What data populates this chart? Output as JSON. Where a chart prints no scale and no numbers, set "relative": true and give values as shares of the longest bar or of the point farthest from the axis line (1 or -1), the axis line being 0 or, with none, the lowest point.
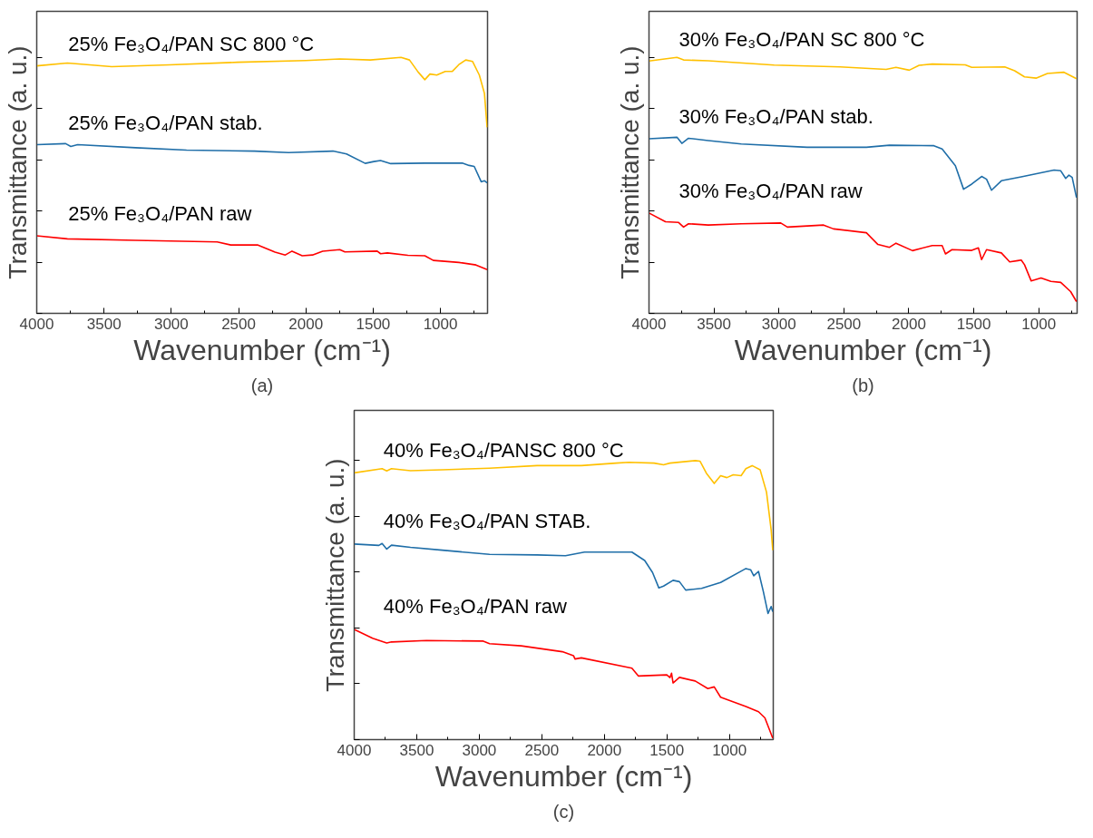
{
  "chart_data": [
    {
      "type": "line",
      "relative": true,
      "xlabel": "Wavenumber (cm⁻¹)",
      "ylabel": "Transmittance (a. u.)",
      "xlim": [
        4000,
        650
      ],
      "tick_labels": "x",
      "xticks": [
        4000,
        {
          "value": 3750,
          "label": null
        },
        3500,
        {
          "value": 3250,
          "label": null
        },
        3000,
        {
          "value": 2750,
          "label": null
        },
        2500,
        {
          "value": 2250,
          "label": null
        },
        2000,
        {
          "value": 1750,
          "label": null
        },
        1500,
        {
          "value": 1250,
          "label": null
        },
        1000,
        {
          "value": 750,
          "label": null
        }
      ],
      "annotations": [
        "(a)"
      ],
      "series": [
        {
          "name": "25% Fe₃O₄/PAN  SC 800 °C",
          "color": "#ffc000",
          "x": [
            4000,
            3772,
            3443,
            3013,
            2507,
            2001,
            1748,
            1521,
            1293,
            1230,
            1166,
            1116,
            1078,
            1027,
            964,
            913,
            863,
            812,
            761,
            711,
            673,
            653
          ],
          "values": [
            0.967,
            0.978,
            0.964,
            0.971,
            0.981,
            0.988,
            0.994,
            0.99,
            1.0,
            0.99,
            0.943,
            0.913,
            0.935,
            0.931,
            0.945,
            0.945,
            0.972,
            0.99,
            0.984,
            0.931,
            0.859,
            0.727
          ]
        },
        {
          "name": "25% Fe₃O₄/PAN stab.",
          "color": "#1f6ea8",
          "x": [
            4000,
            3785,
            3747,
            3696,
            3266,
            2887,
            2381,
            2128,
            1799,
            1698,
            1559,
            1495,
            1445,
            1369,
            1116,
            838,
            787,
            749,
            697,
            672,
            653
          ],
          "values": [
            0.659,
            0.663,
            0.652,
            0.659,
            0.647,
            0.638,
            0.634,
            0.628,
            0.634,
            0.623,
            0.586,
            0.593,
            0.597,
            0.585,
            0.587,
            0.587,
            0.578,
            0.574,
            0.514,
            0.518,
            0.51
          ]
        },
        {
          "name": "25% Fe₃O₄/PAN raw",
          "color": "#ff0000",
          "x": [
            4000,
            3772,
            3266,
            2659,
            2558,
            2356,
            2229,
            2153,
            2103,
            2027,
            1951,
            1875,
            1748,
            1710,
            1470,
            1445,
            1394,
            1242,
            1116,
            1053,
            863,
            736,
            653
          ],
          "values": [
            0.303,
            0.291,
            0.285,
            0.279,
            0.267,
            0.267,
            0.239,
            0.228,
            0.243,
            0.225,
            0.228,
            0.243,
            0.249,
            0.24,
            0.243,
            0.233,
            0.236,
            0.227,
            0.225,
            0.207,
            0.199,
            0.189,
            0.171
          ]
        }
      ]
    },
    {
      "type": "line",
      "relative": true,
      "xlabel": "Wavenumber (cm⁻¹)",
      "ylabel": "Transmittance (a. u.)",
      "xlim": [
        4000,
        705
      ],
      "tick_labels": "x",
      "xticks": [
        4000,
        {
          "value": 3750,
          "label": null
        },
        3500,
        {
          "value": 3250,
          "label": null
        },
        3000,
        {
          "value": 2750,
          "label": null
        },
        2500,
        {
          "value": 2250,
          "label": null
        },
        2000,
        {
          "value": 1750,
          "label": null
        },
        1500,
        {
          "value": 1250,
          "label": null
        },
        1000,
        {
          "value": 750,
          "label": null
        }
      ],
      "annotations": [
        "(b)"
      ],
      "series": [
        {
          "name": "30% Fe₃O₄/PAN SC 800 °C",
          "color": "#ffc000",
          "x": [
            4000,
            3785,
            3734,
            3544,
            3037,
            2530,
            2175,
            2099,
            1997,
            1921,
            1820,
            1566,
            1516,
            1262,
            1186,
            1110,
            1021,
            933,
            806,
            710
          ],
          "values": [
            0.986,
            1.0,
            0.99,
            0.987,
            0.97,
            0.963,
            0.953,
            0.961,
            0.95,
            0.969,
            0.974,
            0.971,
            0.961,
            0.963,
            0.948,
            0.924,
            0.919,
            0.937,
            0.942,
            0.917
          ]
        },
        {
          "name": "30% Fe₃O₄/PAN stab.",
          "color": "#1f6ea8",
          "x": [
            4000,
            3785,
            3747,
            3696,
            3544,
            3290,
            2783,
            2327,
            2149,
            1807,
            1744,
            1642,
            1579,
            1516,
            1440,
            1402,
            1364,
            1288,
            1135,
            882,
            831,
            793,
            768,
            743,
            710
          ],
          "values": [
            0.682,
            0.688,
            0.664,
            0.684,
            0.675,
            0.662,
            0.649,
            0.649,
            0.657,
            0.655,
            0.642,
            0.577,
            0.485,
            0.505,
            0.535,
            0.524,
            0.481,
            0.518,
            0.533,
            0.56,
            0.557,
            0.527,
            0.54,
            0.531,
            0.452
          ]
        },
        {
          "name": "30% Fe₃O₄/PAN raw",
          "color": "#ff0000",
          "x": [
            4000,
            3873,
            3772,
            3734,
            3696,
            3544,
            3290,
            2986,
            2935,
            2656,
            2580,
            2327,
            2238,
            2149,
            2099,
            1972,
            1820,
            1744,
            1718,
            1668,
            1516,
            1465,
            1440,
            1402,
            1288,
            1224,
            1161,
            1135,
            1110,
            1059,
            983,
            907,
            831,
            755,
            710
          ],
          "values": [
            0.392,
            0.358,
            0.355,
            0.337,
            0.35,
            0.345,
            0.35,
            0.353,
            0.337,
            0.345,
            0.33,
            0.315,
            0.269,
            0.258,
            0.274,
            0.245,
            0.265,
            0.265,
            0.232,
            0.249,
            0.246,
            0.256,
            0.21,
            0.249,
            0.236,
            0.201,
            0.206,
            0.208,
            0.19,
            0.127,
            0.138,
            0.125,
            0.121,
            0.085,
            0.046
          ]
        }
      ]
    },
    {
      "type": "line",
      "relative": true,
      "xlabel": "Wavenumber (cm⁻¹)",
      "ylabel": "Transmittance (a. u.)",
      "xlim": [
        4000,
        650
      ],
      "tick_labels": "x",
      "xticks": [
        4000,
        {
          "value": 3750,
          "label": null
        },
        3500,
        {
          "value": 3250,
          "label": null
        },
        3000,
        {
          "value": 2750,
          "label": null
        },
        2500,
        {
          "value": 2250,
          "label": null
        },
        2000,
        {
          "value": 1750,
          "label": null
        },
        1500,
        {
          "value": 1250,
          "label": null
        },
        1000,
        {
          "value": 750,
          "label": null
        }
      ],
      "annotations": [
        "(c)"
      ],
      "series": [
        {
          "name": "40% Fe₃O₄/PANSC 800 °C",
          "color": "#ffc000",
          "x": [
            4000,
            3777,
            3740,
            3702,
            3550,
            3297,
            2918,
            2538,
            2184,
            1906,
            1805,
            1603,
            1527,
            1476,
            1274,
            1236,
            1185,
            1122,
            1071,
            1021,
            970,
            907,
            869,
            819,
            755,
            704,
            667,
            654
          ],
          "values": [
            0.956,
            0.971,
            0.963,
            0.971,
            0.964,
            0.967,
            0.973,
            0.982,
            0.982,
            0.991,
            0.994,
            0.991,
            0.985,
            0.991,
            1.0,
            0.998,
            0.955,
            0.918,
            0.946,
            0.939,
            0.949,
            0.946,
            0.971,
            0.982,
            0.967,
            0.887,
            0.752,
            0.679
          ]
        },
        {
          "name": "40% Fe₃O₄/PAN  STAB.",
          "color": "#1f6ea8",
          "x": [
            4000,
            3803,
            3777,
            3740,
            3702,
            3550,
            3297,
            2918,
            2538,
            2311,
            2159,
            1780,
            1678,
            1615,
            1565,
            1527,
            1451,
            1400,
            1350,
            1223,
            1071,
            869,
            831,
            806,
            768,
            730,
            692,
            667,
            654
          ],
          "values": [
            0.701,
            0.696,
            0.703,
            0.683,
            0.697,
            0.689,
            0.679,
            0.664,
            0.662,
            0.659,
            0.672,
            0.672,
            0.642,
            0.599,
            0.544,
            0.55,
            0.571,
            0.566,
            0.536,
            0.542,
            0.563,
            0.613,
            0.609,
            0.587,
            0.603,
            0.532,
            0.452,
            0.477,
            0.458
          ]
        },
        {
          "name": "40% Fe₃O₄/PAN raw",
          "color": "#ff0000",
          "x": [
            4000,
            3853,
            3740,
            3702,
            3423,
            2968,
            2918,
            2665,
            2336,
            2247,
            2235,
            2184,
            1780,
            1729,
            1501,
            1476,
            1463,
            1451,
            1400,
            1274,
            1173,
            1122,
            1071,
            869,
            768,
            717,
            654
          ],
          "values": [
            0.395,
            0.363,
            0.346,
            0.35,
            0.355,
            0.353,
            0.344,
            0.336,
            0.315,
            0.301,
            0.289,
            0.293,
            0.256,
            0.228,
            0.232,
            0.222,
            0.238,
            0.203,
            0.223,
            0.21,
            0.183,
            0.189,
            0.152,
            0.119,
            0.1,
            0.078,
            0.005
          ]
        }
      ]
    }
  ]
}
